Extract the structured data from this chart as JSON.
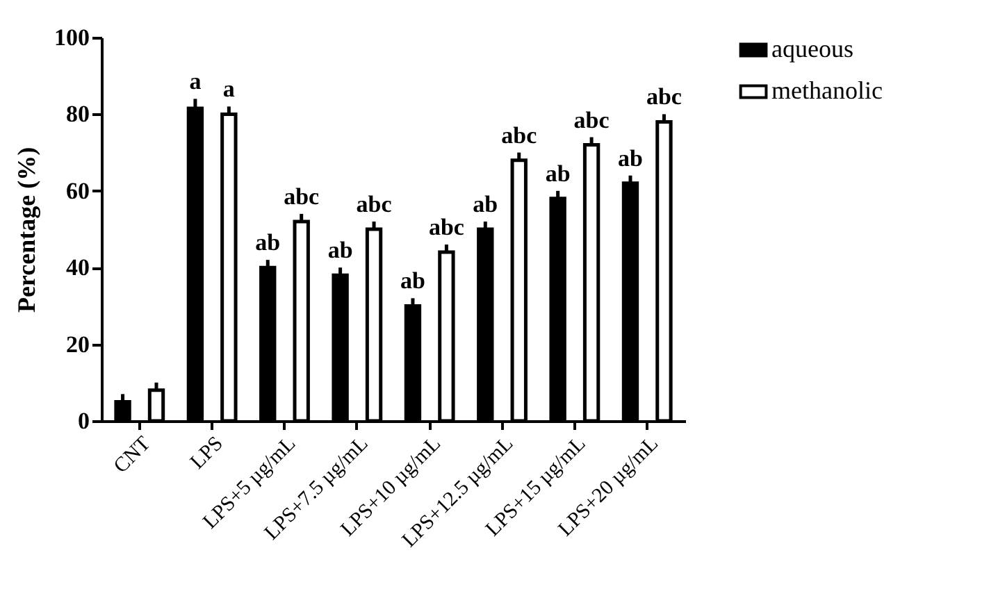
{
  "chart_data": {
    "type": "bar",
    "ylabel": "Percentage (%)",
    "categories": [
      "CNT",
      "LPS",
      "LPS+5 µg/mL",
      "LPS+7.5 µg/mL",
      "LPS+10 µg/mL",
      "LPS+12.5 µg/mL",
      "LPS+15 µg/mL",
      "LPS+20 µg/mL"
    ],
    "series": [
      {
        "name": "aqueous",
        "color": "#000000",
        "values": [
          5,
          81.5,
          40,
          38,
          30,
          50,
          58,
          62
        ],
        "errors": [
          [
            5,
            7
          ],
          [
            81.5,
            84
          ],
          [
            40,
            42
          ],
          [
            38,
            40
          ],
          [
            30,
            32
          ],
          [
            50,
            52
          ],
          [
            58,
            60
          ],
          [
            62,
            64
          ]
        ],
        "value_labels": [
          null,
          "a",
          "ab",
          "ab",
          "ab",
          "ab",
          "ab",
          "ab"
        ]
      },
      {
        "name": "methanolic",
        "color": "#ffffff",
        "values": [
          8,
          80,
          52,
          50,
          44,
          68,
          72,
          78
        ],
        "errors": [
          [
            8,
            10
          ],
          [
            80,
            82
          ],
          [
            52,
            54
          ],
          [
            50,
            52
          ],
          [
            44,
            46
          ],
          [
            68,
            70
          ],
          [
            72,
            74
          ],
          [
            78,
            80
          ]
        ],
        "value_labels": [
          null,
          "a",
          "abc",
          "abc",
          "abc",
          "abc",
          "abc",
          "abc"
        ]
      }
    ],
    "ylim": [
      0,
      100
    ],
    "yticks": [
      0,
      20,
      40,
      60,
      80,
      100
    ],
    "grid": false,
    "legend": "top right"
  }
}
